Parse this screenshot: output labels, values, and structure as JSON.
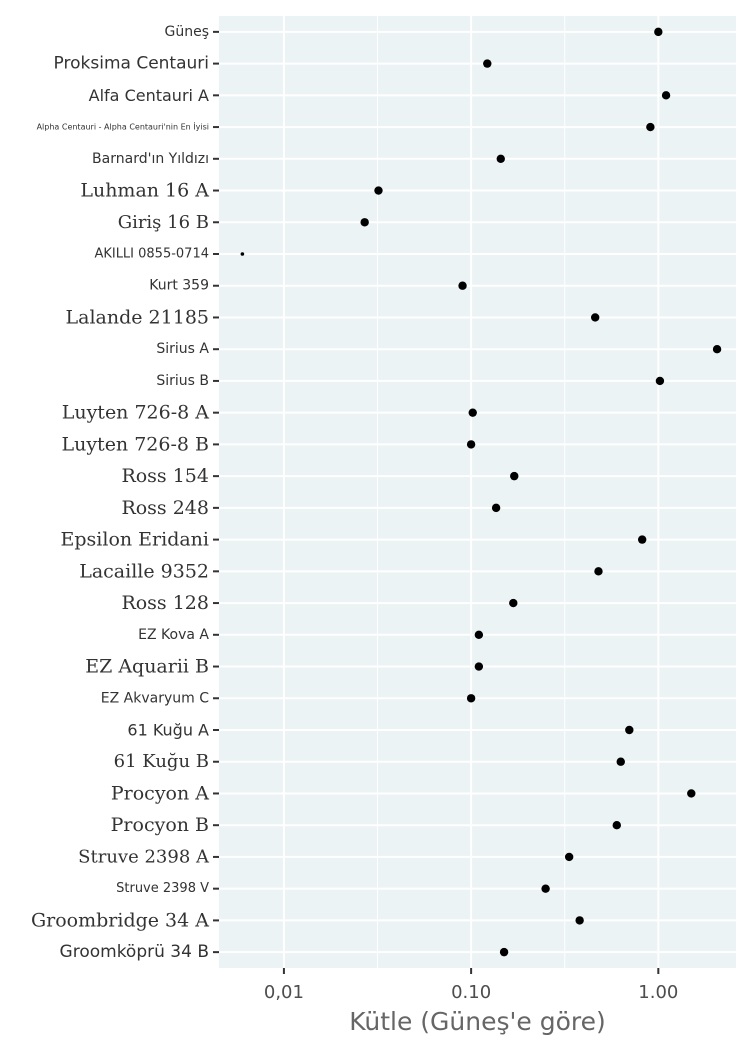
{
  "chart_data": {
    "type": "scatter",
    "xlabel": "Kütle (Güneş'e göre)",
    "ylabel": "",
    "x_scale": "log",
    "xlim": [
      0.0045,
      2.6
    ],
    "x_ticks": [
      0.01,
      0.1,
      1
    ],
    "x_tick_labels": [
      "0,01",
      "0.10",
      "1.00"
    ],
    "grid": true,
    "panel_background": "#ebf3f5",
    "point_color": "#000000",
    "categories": [
      "Güneş",
      "Proksima Centauri",
      "Alfa Centauri A",
      "Alpha Centauri - Alpha Centauri'nin En İyisi",
      "Barnard'ın Yıldızı",
      "Luhman 16 A",
      "Giriş 16 B",
      "AKILLI 0855-0714",
      "Kurt 359",
      "Lalande 21185",
      "Sirius A",
      "Sirius B",
      "Luyten 726-8 A",
      "Luyten 726-8 B",
      "Ross 154",
      "Ross 248",
      "Epsilon Eridani",
      "Lacaille 9352",
      "Ross 128",
      "EZ Kova A",
      "EZ Aquarii B",
      "EZ Akvaryum C",
      "61 Kuğu A",
      "61 Kuğu B",
      "Procyon A",
      "Procyon B",
      "Struve 2398 A",
      "Struve 2398 V",
      "Groombridge 34 A",
      "Groomköprü 34 B"
    ],
    "values": [
      1.0,
      0.122,
      1.1,
      0.907,
      0.144,
      0.032,
      0.027,
      0.006,
      0.09,
      0.46,
      2.06,
      1.02,
      0.102,
      0.1,
      0.17,
      0.136,
      0.82,
      0.479,
      0.168,
      0.11,
      0.11,
      0.1,
      0.7,
      0.63,
      1.5,
      0.6,
      0.334,
      0.25,
      0.38,
      0.15
    ]
  }
}
